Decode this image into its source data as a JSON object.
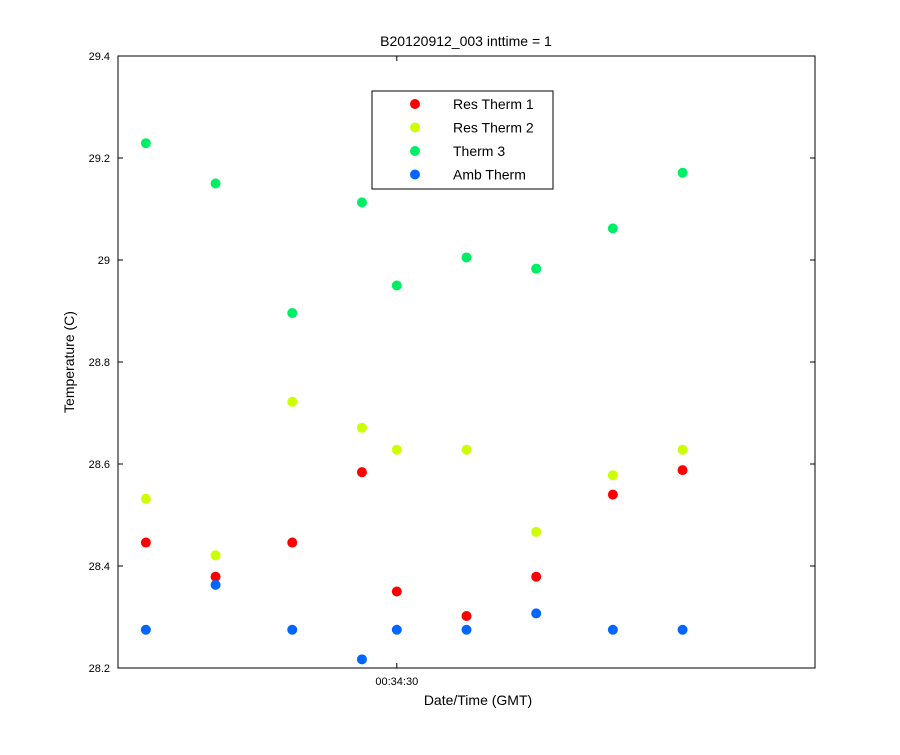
{
  "chart_data": {
    "type": "scatter",
    "title": "B20120912_003 inttime = 1",
    "xlabel": "Date/Time (GMT)",
    "ylabel": "Temperature (C)",
    "ylim": [
      28.2,
      29.4
    ],
    "yticks": [
      "28.2",
      "28.4",
      "28.6",
      "28.8",
      "29",
      "29.2",
      "29.4"
    ],
    "xlim": [
      "00:34:26",
      "00:34:36"
    ],
    "xticks": [
      {
        "x": "00:34:30",
        "label": "00:34:30"
      }
    ],
    "grid": false,
    "legend_position": "top-center",
    "series": [
      {
        "name": "Res Therm 1",
        "color": "#ff0000",
        "points": [
          {
            "x": "00:34:26.4",
            "y": 28.446
          },
          {
            "x": "00:34:27.4",
            "y": 28.379
          },
          {
            "x": "00:34:28.5",
            "y": 28.446
          },
          {
            "x": "00:34:29.5",
            "y": 28.584
          },
          {
            "x": "00:34:30.0",
            "y": 28.35
          },
          {
            "x": "00:34:31.0",
            "y": 28.302
          },
          {
            "x": "00:34:32.0",
            "y": 28.379
          },
          {
            "x": "00:34:33.1",
            "y": 28.54
          },
          {
            "x": "00:34:34.1",
            "y": 28.588
          }
        ]
      },
      {
        "name": "Res Therm 2",
        "color": "#ccff00",
        "points": [
          {
            "x": "00:34:26.4",
            "y": 28.532
          },
          {
            "x": "00:34:27.4",
            "y": 28.421
          },
          {
            "x": "00:34:28.5",
            "y": 28.722
          },
          {
            "x": "00:34:29.5",
            "y": 28.671
          },
          {
            "x": "00:34:30.0",
            "y": 28.628
          },
          {
            "x": "00:34:31.0",
            "y": 28.628
          },
          {
            "x": "00:34:32.0",
            "y": 28.467
          },
          {
            "x": "00:34:33.1",
            "y": 28.578
          },
          {
            "x": "00:34:34.1",
            "y": 28.628
          }
        ]
      },
      {
        "name": "Therm 3",
        "color": "#00ee66",
        "points": [
          {
            "x": "00:34:26.4",
            "y": 29.229
          },
          {
            "x": "00:34:27.4",
            "y": 29.15
          },
          {
            "x": "00:34:28.5",
            "y": 28.896
          },
          {
            "x": "00:34:29.5",
            "y": 29.113
          },
          {
            "x": "00:34:30.0",
            "y": 28.95
          },
          {
            "x": "00:34:31.0",
            "y": 29.005
          },
          {
            "x": "00:34:32.0",
            "y": 28.983
          },
          {
            "x": "00:34:33.1",
            "y": 29.062
          },
          {
            "x": "00:34:34.1",
            "y": 29.171
          }
        ]
      },
      {
        "name": "Amb Therm",
        "color": "#0066ff",
        "points": [
          {
            "x": "00:34:26.4",
            "y": 28.275
          },
          {
            "x": "00:34:27.4",
            "y": 28.363
          },
          {
            "x": "00:34:28.5",
            "y": 28.275
          },
          {
            "x": "00:34:29.5",
            "y": 28.217
          },
          {
            "x": "00:34:30.0",
            "y": 28.275
          },
          {
            "x": "00:34:31.0",
            "y": 28.275
          },
          {
            "x": "00:34:32.0",
            "y": 28.307
          },
          {
            "x": "00:34:33.1",
            "y": 28.275
          },
          {
            "x": "00:34:34.1",
            "y": 28.275
          }
        ]
      }
    ]
  }
}
